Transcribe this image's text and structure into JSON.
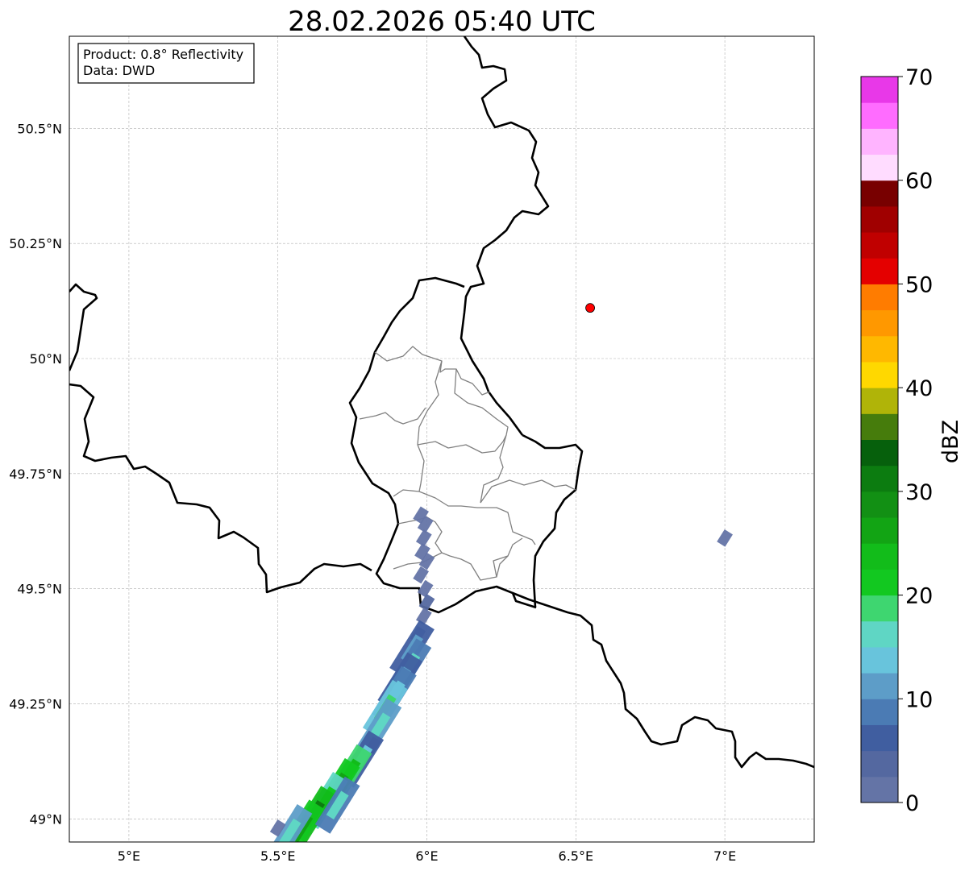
{
  "title": "28.02.2026 05:40 UTC",
  "info_box": {
    "product": "Product: 0.8° Reflectivity",
    "source": "Data: DWD"
  },
  "map": {
    "lon_range": [
      4.8,
      7.3
    ],
    "lat_range": [
      48.95,
      50.7
    ],
    "x_ticks": [
      {
        "value": 5.0,
        "label": "5°E"
      },
      {
        "value": 5.5,
        "label": "5.5°E"
      },
      {
        "value": 6.0,
        "label": "6°E"
      },
      {
        "value": 6.5,
        "label": "6.5°E"
      },
      {
        "value": 7.0,
        "label": "7°E"
      }
    ],
    "y_ticks": [
      {
        "value": 49.0,
        "label": "49°N"
      },
      {
        "value": 49.25,
        "label": "49.25°N"
      },
      {
        "value": 49.5,
        "label": "49.5°N"
      },
      {
        "value": 49.75,
        "label": "49.75°N"
      },
      {
        "value": 50.0,
        "label": "50°N"
      },
      {
        "value": 50.25,
        "label": "50.25°N"
      },
      {
        "value": 50.5,
        "label": "50.5°N"
      }
    ],
    "grid": true,
    "marker": {
      "lon": 6.548,
      "lat": 50.11,
      "color": "#ff0000"
    },
    "border_color": "#000000",
    "admin_border_color": "#808080"
  },
  "colorbar": {
    "label": "dBZ",
    "min": 0,
    "max": 70,
    "ticks": [
      {
        "value": 0,
        "label": "0"
      },
      {
        "value": 10,
        "label": "10"
      },
      {
        "value": 20,
        "label": "20"
      },
      {
        "value": 30,
        "label": "30"
      },
      {
        "value": 40,
        "label": "40"
      },
      {
        "value": 50,
        "label": "50"
      },
      {
        "value": 60,
        "label": "60"
      },
      {
        "value": 70,
        "label": "70"
      }
    ],
    "colors": [
      "#6474a6",
      "#5468a0",
      "#405ea0",
      "#4b7bb4",
      "#5d9dc8",
      "#68c4dc",
      "#5fd6c4",
      "#3ed670",
      "#12c820",
      "#12bc1a",
      "#12a414",
      "#129014",
      "#0c7c10",
      "#06600c",
      "#467c0c",
      "#b0b408",
      "#ffd800",
      "#ffb800",
      "#ff9800",
      "#ff7c00",
      "#e40000",
      "#c00000",
      "#a00000",
      "#780000",
      "#ffdcff",
      "#ffb4ff",
      "#ff6cff",
      "#e838e8"
    ]
  },
  "radar_echoes": [
    {
      "lon": 5.98,
      "lat": 49.66,
      "dbz": 3
    },
    {
      "lon": 5.995,
      "lat": 49.64,
      "dbz": 4
    },
    {
      "lon": 5.99,
      "lat": 49.61,
      "dbz": 6
    },
    {
      "lon": 5.985,
      "lat": 49.58,
      "dbz": 3
    },
    {
      "lon": 6.0,
      "lat": 49.56,
      "dbz": 8
    },
    {
      "lon": 5.98,
      "lat": 49.53,
      "dbz": 5
    },
    {
      "lon": 5.995,
      "lat": 49.5,
      "dbz": 7
    },
    {
      "lon": 6.0,
      "lat": 49.47,
      "dbz": 9
    },
    {
      "lon": 5.99,
      "lat": 49.44,
      "dbz": 4
    },
    {
      "lon": 5.97,
      "lat": 49.4,
      "dbz": 8
    },
    {
      "lon": 5.95,
      "lat": 49.37,
      "dbz": 12
    },
    {
      "lon": 5.94,
      "lat": 49.33,
      "dbz": 15
    },
    {
      "lon": 5.91,
      "lat": 49.3,
      "dbz": 11
    },
    {
      "lon": 5.89,
      "lat": 49.27,
      "dbz": 14
    },
    {
      "lon": 5.86,
      "lat": 49.24,
      "dbz": 19
    },
    {
      "lon": 5.84,
      "lat": 49.2,
      "dbz": 17
    },
    {
      "lon": 5.82,
      "lat": 49.16,
      "dbz": 9
    },
    {
      "lon": 5.78,
      "lat": 49.13,
      "dbz": 13
    },
    {
      "lon": 5.74,
      "lat": 49.1,
      "dbz": 24
    },
    {
      "lon": 5.7,
      "lat": 49.07,
      "dbz": 27
    },
    {
      "lon": 5.66,
      "lat": 49.04,
      "dbz": 22
    },
    {
      "lon": 5.62,
      "lat": 49.01,
      "dbz": 30
    },
    {
      "lon": 5.58,
      "lat": 48.98,
      "dbz": 26
    },
    {
      "lon": 5.54,
      "lat": 48.97,
      "dbz": 16
    },
    {
      "lon": 5.7,
      "lat": 49.03,
      "dbz": 15
    },
    {
      "lon": 5.5,
      "lat": 48.98,
      "dbz": 8
    },
    {
      "lon": 7.0,
      "lat": 49.61,
      "dbz": 2
    }
  ]
}
